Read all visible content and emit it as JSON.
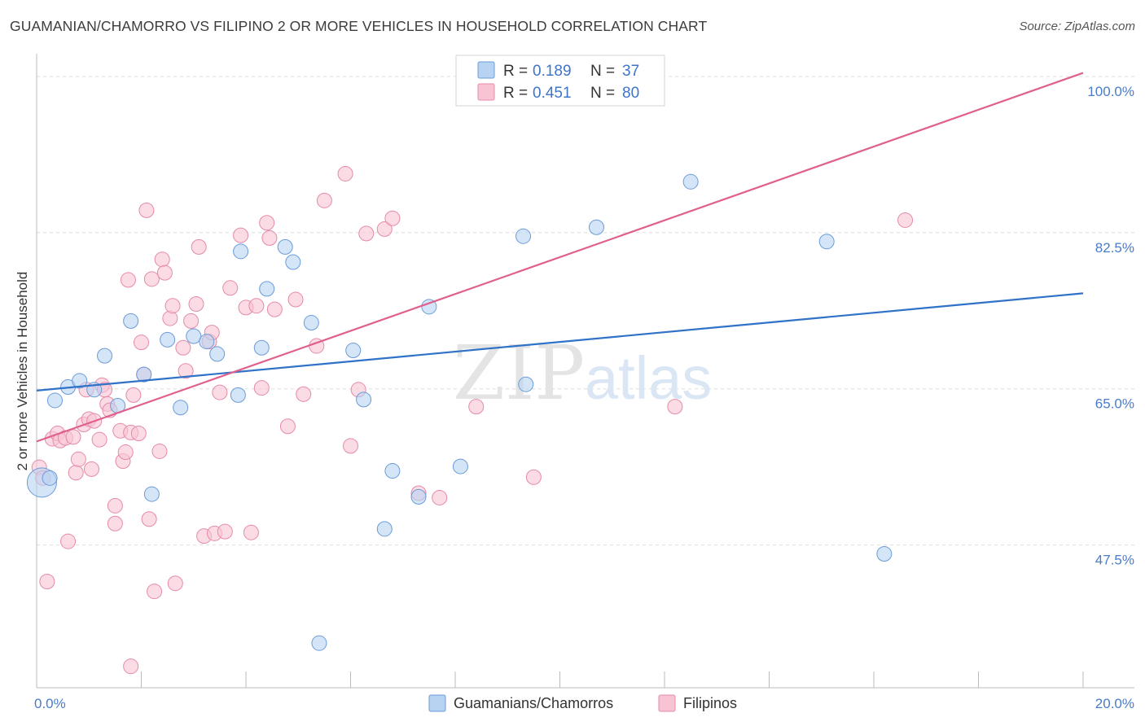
{
  "header": {
    "title": "GUAMANIAN/CHAMORRO VS FILIPINO 2 OR MORE VEHICLES IN HOUSEHOLD CORRELATION CHART",
    "source": "Source: ZipAtlas.com"
  },
  "watermark": {
    "zip": "ZIP",
    "atlas": "atlas"
  },
  "legend": {
    "r_label": "R =",
    "n_label": "N =",
    "entries": [
      {
        "r": "0.189",
        "n": "37"
      },
      {
        "r": "0.451",
        "n": "80"
      }
    ]
  },
  "chart_data": {
    "type": "scatter",
    "title": "GUAMANIAN/CHAMORRO VS FILIPINO 2 OR MORE VEHICLES IN HOUSEHOLD CORRELATION CHART",
    "xlabel": "",
    "ylabel": "2 or more Vehicles in Household",
    "xlim": [
      0,
      20
    ],
    "ylim": [
      31.5,
      102
    ],
    "x_tick_labels": [
      {
        "value": 0,
        "label": "0.0%"
      },
      {
        "value": 20,
        "label": "20.0%"
      }
    ],
    "y_ticks": [
      {
        "value": 100,
        "label": "100.0%"
      },
      {
        "value": 82.5,
        "label": "82.5%"
      },
      {
        "value": 65,
        "label": "65.0%"
      },
      {
        "value": 47.5,
        "label": "47.5%"
      }
    ],
    "grid": true,
    "legend_position": "top-center",
    "colors": {
      "guam_fill": "#b8d3f2",
      "guam_stroke": "#6b9bd8",
      "guam_line": "#2f72c8",
      "fil_fill": "#f8c4d4",
      "fil_stroke": "#e58aa8",
      "fil_line": "#e0608d"
    },
    "series": [
      {
        "name": "Guamanians/Chamorros",
        "R": 0.189,
        "N": 37,
        "trend": {
          "x": [
            0,
            20
          ],
          "y": [
            64.8,
            75.7
          ]
        },
        "points": [
          [
            0.1,
            54.5
          ],
          [
            0.35,
            63.7
          ],
          [
            0.6,
            65.2
          ],
          [
            0.82,
            65.9
          ],
          [
            1.1,
            64.9
          ],
          [
            1.3,
            68.7
          ],
          [
            1.55,
            63.1
          ],
          [
            1.8,
            72.6
          ],
          [
            2.05,
            66.6
          ],
          [
            2.2,
            53.2
          ],
          [
            2.5,
            70.5
          ],
          [
            2.75,
            62.9
          ],
          [
            3.0,
            70.9
          ],
          [
            3.25,
            70.3
          ],
          [
            3.45,
            68.9
          ],
          [
            3.85,
            64.3
          ],
          [
            3.9,
            80.4
          ],
          [
            4.3,
            69.6
          ],
          [
            4.4,
            76.2
          ],
          [
            4.75,
            80.9
          ],
          [
            4.9,
            79.2
          ],
          [
            5.25,
            72.4
          ],
          [
            5.4,
            36.5
          ],
          [
            6.05,
            69.3
          ],
          [
            6.25,
            63.8
          ],
          [
            6.65,
            49.3
          ],
          [
            6.8,
            55.8
          ],
          [
            7.3,
            52.9
          ],
          [
            7.5,
            74.2
          ],
          [
            8.1,
            56.3
          ],
          [
            9.3,
            82.1
          ],
          [
            9.35,
            65.5
          ],
          [
            10.7,
            83.1
          ],
          [
            12.5,
            88.2
          ],
          [
            15.1,
            81.5
          ],
          [
            16.2,
            46.5
          ],
          [
            0.25,
            55.0
          ]
        ]
      },
      {
        "name": "Filipinos",
        "R": 0.451,
        "N": 80,
        "trend": {
          "x": [
            0,
            20
          ],
          "y": [
            59.1,
            100.4
          ]
        },
        "points": [
          [
            0.05,
            56.2
          ],
          [
            0.12,
            55.0
          ],
          [
            0.2,
            43.4
          ],
          [
            0.3,
            59.4
          ],
          [
            0.4,
            60.0
          ],
          [
            0.45,
            59.2
          ],
          [
            0.55,
            59.5
          ],
          [
            0.6,
            47.9
          ],
          [
            0.7,
            59.6
          ],
          [
            0.75,
            55.6
          ],
          [
            0.8,
            57.1
          ],
          [
            0.9,
            61.0
          ],
          [
            0.95,
            64.9
          ],
          [
            1.0,
            61.6
          ],
          [
            1.05,
            56.0
          ],
          [
            1.1,
            61.4
          ],
          [
            1.2,
            59.3
          ],
          [
            1.25,
            65.4
          ],
          [
            1.3,
            64.9
          ],
          [
            1.35,
            63.3
          ],
          [
            1.4,
            62.6
          ],
          [
            1.5,
            49.9
          ],
          [
            1.5,
            51.9
          ],
          [
            1.6,
            60.3
          ],
          [
            1.65,
            56.9
          ],
          [
            1.7,
            57.9
          ],
          [
            1.75,
            77.2
          ],
          [
            1.8,
            60.1
          ],
          [
            1.8,
            33.9
          ],
          [
            1.85,
            64.3
          ],
          [
            1.95,
            60.0
          ],
          [
            2.0,
            70.2
          ],
          [
            2.05,
            66.6
          ],
          [
            2.1,
            85.0
          ],
          [
            2.15,
            50.4
          ],
          [
            2.2,
            77.3
          ],
          [
            2.25,
            42.3
          ],
          [
            2.35,
            58.0
          ],
          [
            2.4,
            79.5
          ],
          [
            2.45,
            78.0
          ],
          [
            2.55,
            72.9
          ],
          [
            2.6,
            74.3
          ],
          [
            2.65,
            43.2
          ],
          [
            2.8,
            69.6
          ],
          [
            2.85,
            67.0
          ],
          [
            2.95,
            72.6
          ],
          [
            3.05,
            74.5
          ],
          [
            3.1,
            80.9
          ],
          [
            3.2,
            48.5
          ],
          [
            3.3,
            70.3
          ],
          [
            3.35,
            71.3
          ],
          [
            3.4,
            48.8
          ],
          [
            3.5,
            64.6
          ],
          [
            3.6,
            49.0
          ],
          [
            3.7,
            76.3
          ],
          [
            3.9,
            82.2
          ],
          [
            4.0,
            74.1
          ],
          [
            4.1,
            48.9
          ],
          [
            4.2,
            74.3
          ],
          [
            4.3,
            65.1
          ],
          [
            4.4,
            83.6
          ],
          [
            4.45,
            81.9
          ],
          [
            4.55,
            73.9
          ],
          [
            4.8,
            60.8
          ],
          [
            4.95,
            75.0
          ],
          [
            5.1,
            64.4
          ],
          [
            5.35,
            69.8
          ],
          [
            5.5,
            86.1
          ],
          [
            5.9,
            89.1
          ],
          [
            6.0,
            58.6
          ],
          [
            6.15,
            64.9
          ],
          [
            6.3,
            82.4
          ],
          [
            6.65,
            82.9
          ],
          [
            6.8,
            84.1
          ],
          [
            7.3,
            53.3
          ],
          [
            7.7,
            52.8
          ],
          [
            8.4,
            63.0
          ],
          [
            9.5,
            55.1
          ],
          [
            12.2,
            63.0
          ],
          [
            16.6,
            83.9
          ]
        ]
      }
    ]
  },
  "bottom_legend": {
    "items": [
      {
        "label": "Guamanians/Chamorros"
      },
      {
        "label": "Filipinos"
      }
    ]
  }
}
